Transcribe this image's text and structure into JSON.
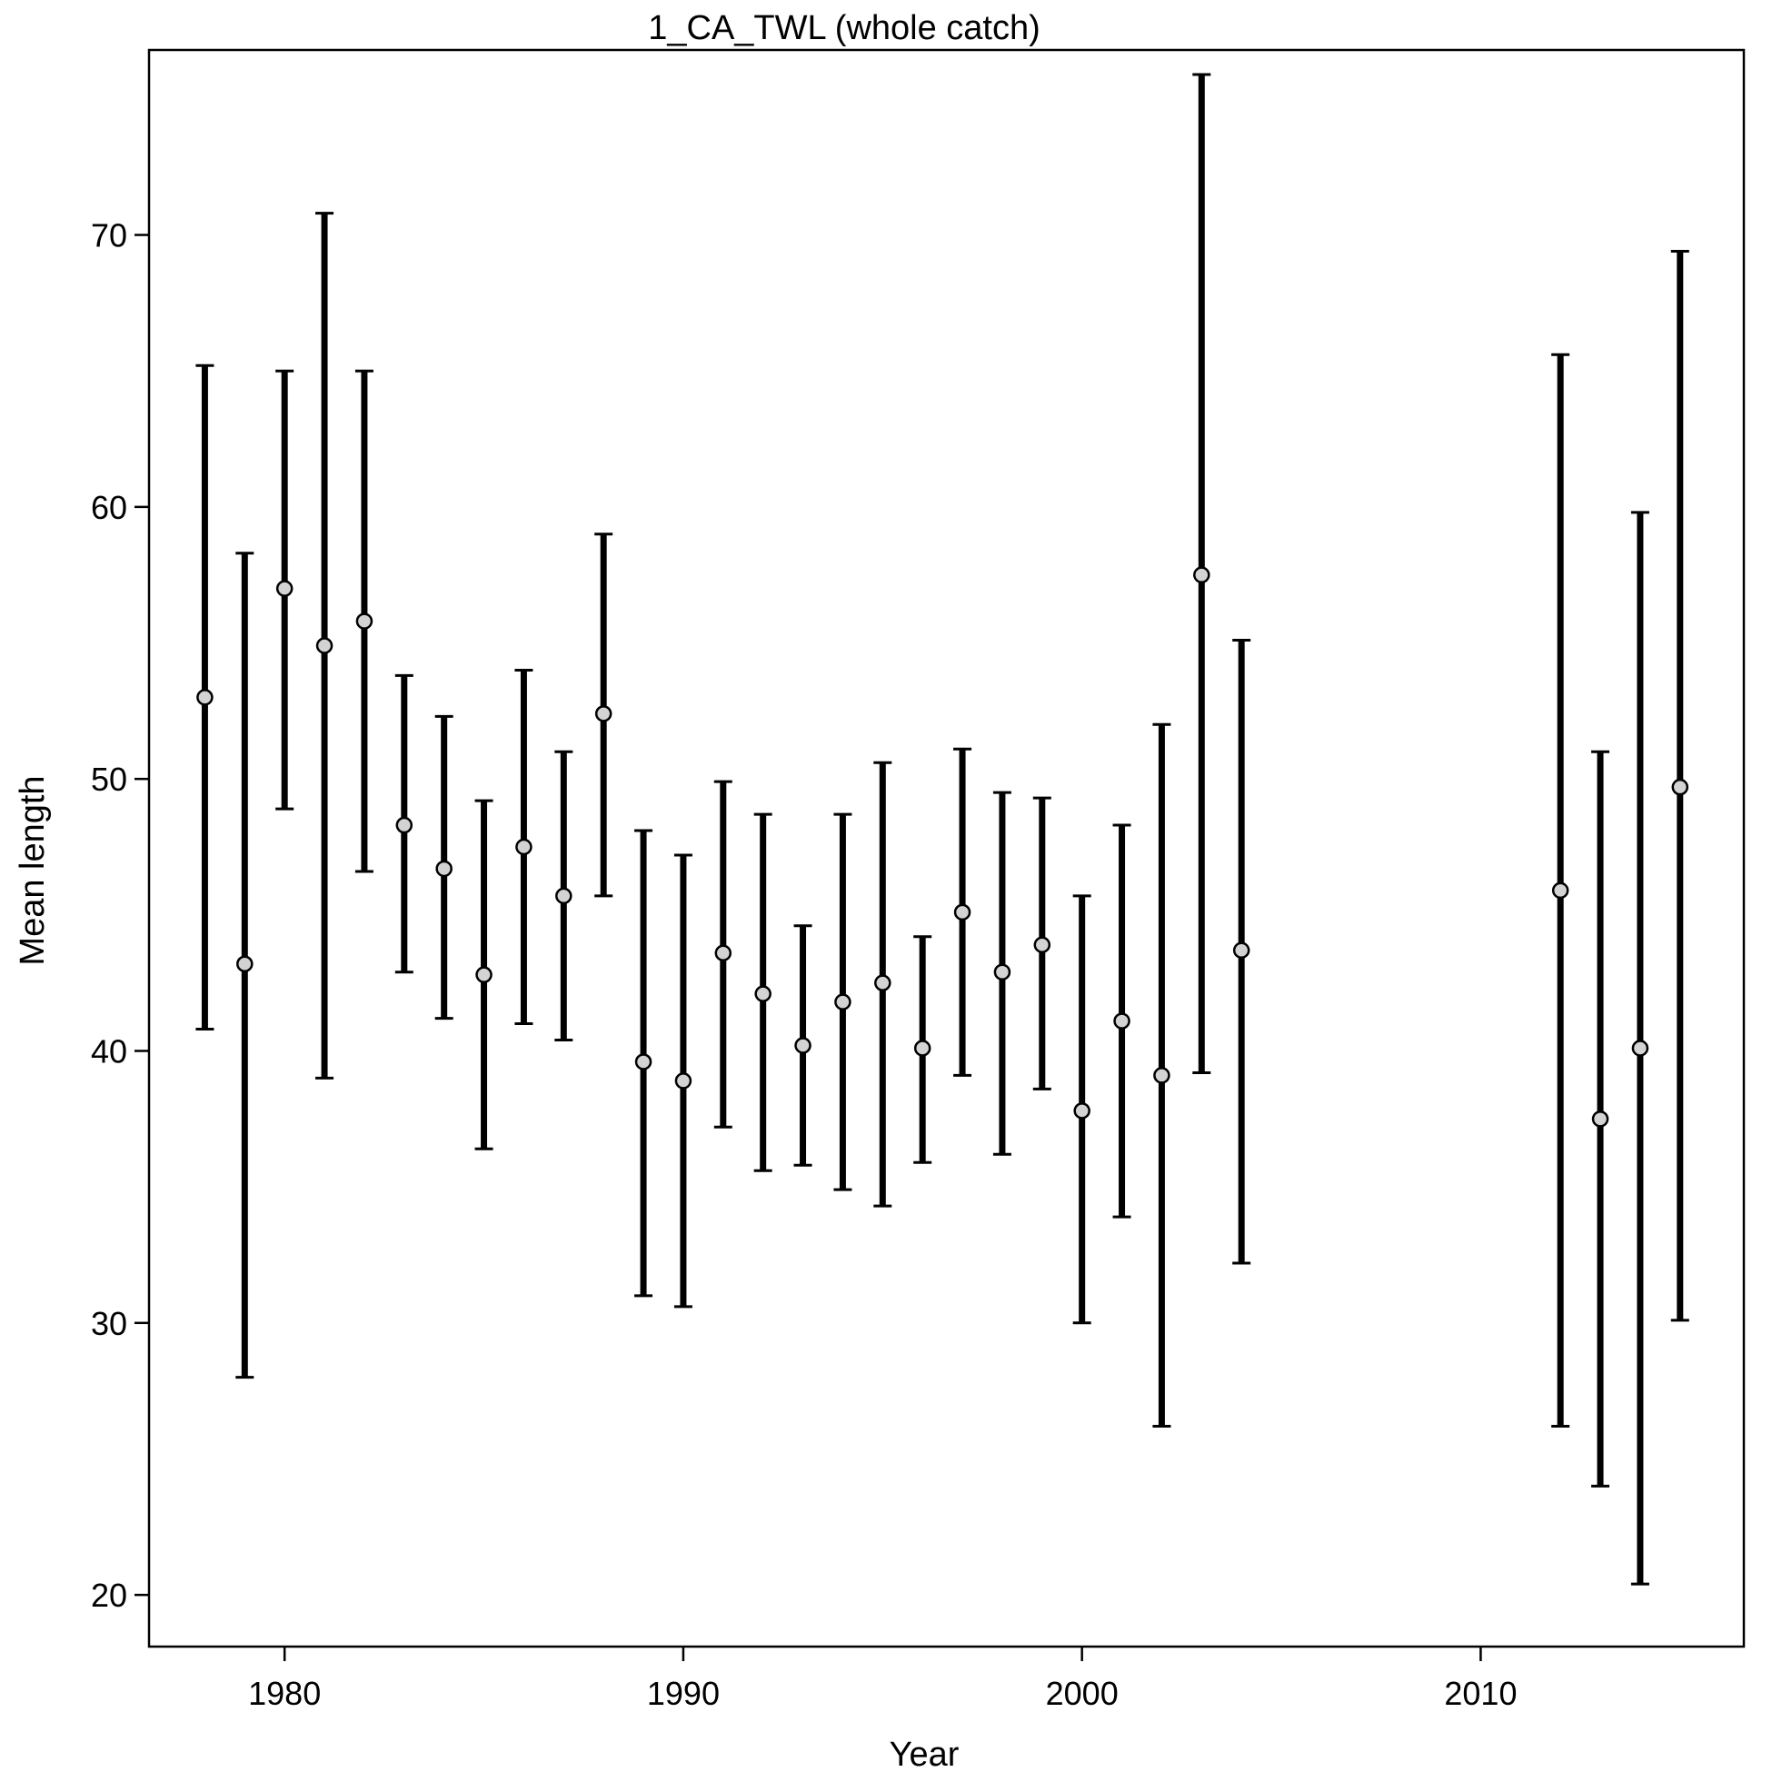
{
  "chart_data": {
    "type": "scatter",
    "title": "1_CA_TWL (whole catch)",
    "xlabel": "Year",
    "ylabel": "Mean length",
    "xlim": [
      1976.6,
      2016.6
    ],
    "ylim": [
      18.1,
      76.8
    ],
    "xticks": [
      1980,
      1990,
      2000,
      2010
    ],
    "yticks": [
      20,
      30,
      40,
      50,
      60,
      70
    ],
    "grid": false,
    "error_bars": true,
    "marker_color": "#d3d3d3",
    "series": [
      {
        "points": [
          {
            "x": 1978,
            "y": 53.0,
            "lo": 40.8,
            "hi": 65.2
          },
          {
            "x": 1979,
            "y": 43.2,
            "lo": 28.0,
            "hi": 58.3
          },
          {
            "x": 1980,
            "y": 57.0,
            "lo": 48.9,
            "hi": 65.0
          },
          {
            "x": 1981,
            "y": 54.9,
            "lo": 39.0,
            "hi": 70.8
          },
          {
            "x": 1982,
            "y": 55.8,
            "lo": 46.6,
            "hi": 65.0
          },
          {
            "x": 1983,
            "y": 48.3,
            "lo": 42.9,
            "hi": 53.8
          },
          {
            "x": 1984,
            "y": 46.7,
            "lo": 41.2,
            "hi": 52.3
          },
          {
            "x": 1985,
            "y": 42.8,
            "lo": 36.4,
            "hi": 49.2
          },
          {
            "x": 1986,
            "y": 47.5,
            "lo": 41.0,
            "hi": 54.0
          },
          {
            "x": 1987,
            "y": 45.7,
            "lo": 40.4,
            "hi": 51.0
          },
          {
            "x": 1988,
            "y": 52.4,
            "lo": 45.7,
            "hi": 59.0
          },
          {
            "x": 1989,
            "y": 39.6,
            "lo": 31.0,
            "hi": 48.1
          },
          {
            "x": 1990,
            "y": 38.9,
            "lo": 30.6,
            "hi": 47.2
          },
          {
            "x": 1991,
            "y": 43.6,
            "lo": 37.2,
            "hi": 49.9
          },
          {
            "x": 1992,
            "y": 42.1,
            "lo": 35.6,
            "hi": 48.7
          },
          {
            "x": 1993,
            "y": 40.2,
            "lo": 35.8,
            "hi": 44.6
          },
          {
            "x": 1994,
            "y": 41.8,
            "lo": 34.9,
            "hi": 48.7
          },
          {
            "x": 1995,
            "y": 42.5,
            "lo": 34.3,
            "hi": 50.6
          },
          {
            "x": 1996,
            "y": 40.1,
            "lo": 35.9,
            "hi": 44.2
          },
          {
            "x": 1997,
            "y": 45.1,
            "lo": 39.1,
            "hi": 51.1
          },
          {
            "x": 1998,
            "y": 42.9,
            "lo": 36.2,
            "hi": 49.5
          },
          {
            "x": 1999,
            "y": 43.9,
            "lo": 38.6,
            "hi": 49.3
          },
          {
            "x": 2000,
            "y": 37.8,
            "lo": 30.0,
            "hi": 45.7
          },
          {
            "x": 2001,
            "y": 41.1,
            "lo": 33.9,
            "hi": 48.3
          },
          {
            "x": 2002,
            "y": 39.1,
            "lo": 26.2,
            "hi": 52.0
          },
          {
            "x": 2003,
            "y": 57.5,
            "lo": 39.2,
            "hi": 75.9
          },
          {
            "x": 2004,
            "y": 43.7,
            "lo": 32.2,
            "hi": 55.1
          },
          {
            "x": 2012,
            "y": 45.9,
            "lo": 26.2,
            "hi": 65.6
          },
          {
            "x": 2013,
            "y": 37.5,
            "lo": 24.0,
            "hi": 51.0
          },
          {
            "x": 2014,
            "y": 40.1,
            "lo": 20.4,
            "hi": 59.8
          },
          {
            "x": 2015,
            "y": 49.7,
            "lo": 30.1,
            "hi": 69.4
          }
        ]
      }
    ]
  }
}
